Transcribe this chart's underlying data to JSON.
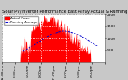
{
  "title": "Solar PV/Inverter Performance East Array Actual & Running Average Power Output",
  "bg_color": "#c8c8c8",
  "plot_bg": "#ffffff",
  "bar_color": "#ff0000",
  "line_color": "#0000cc",
  "grid_color": "#ffffff",
  "ylim": [
    0,
    2000
  ],
  "xlim": [
    0,
    288
  ],
  "n_points": 289,
  "peak_index": 130,
  "peak_value": 1900,
  "avg_peak_index": 170,
  "avg_peak_value": 1300,
  "start_index": 50,
  "end_index": 248,
  "avg_start_index": 58,
  "avg_end_index": 268,
  "ytick_values": [
    500,
    1000,
    1500,
    2000
  ],
  "ytick_labels": [
    "500",
    "1000",
    "1500",
    "2000"
  ],
  "xtick_positions": [
    0,
    36,
    72,
    108,
    144,
    180,
    216,
    252,
    288
  ],
  "xtick_labels": [
    "12:00am",
    "3:00am",
    "6:00am",
    "9:00am",
    "12:00pm",
    "3:00pm",
    "6:00pm",
    "9:00pm",
    ""
  ],
  "title_fontsize": 3.8,
  "tick_fontsize": 3.2,
  "legend_labels": [
    "Actual Power",
    "Running Average"
  ],
  "legend_colors": [
    "#ff0000",
    "#0000cc"
  ]
}
